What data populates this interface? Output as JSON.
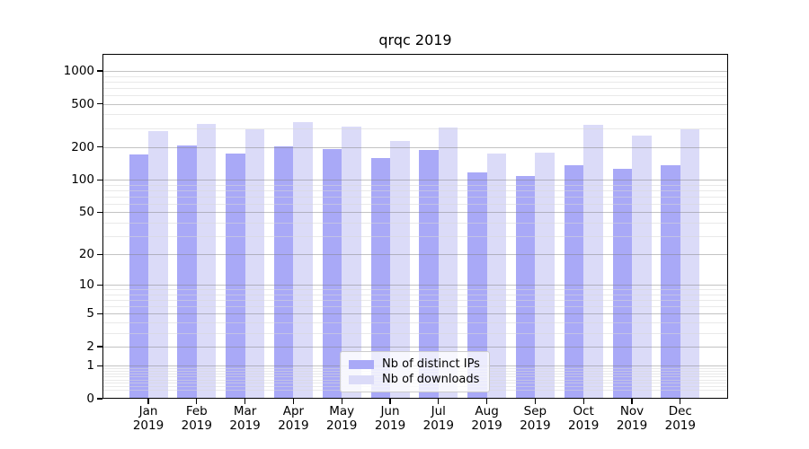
{
  "chart_data": {
    "type": "bar",
    "title": "qrqc 2019",
    "categories": [
      "Jan 2019",
      "Feb 2019",
      "Mar 2019",
      "Apr 2019",
      "May 2019",
      "Jun 2019",
      "Jul 2019",
      "Aug 2019",
      "Sep 2019",
      "Oct 2019",
      "Nov 2019",
      "Dec 2019"
    ],
    "series": [
      {
        "name": "Nb of distinct IPs",
        "color": "#a9a9f7",
        "values": [
          172,
          209,
          175,
          202,
          192,
          159,
          189,
          118,
          109,
          135,
          127,
          135
        ]
      },
      {
        "name": "Nb of downloads",
        "color": "#dbdbf8",
        "values": [
          282,
          329,
          293,
          338,
          311,
          228,
          303,
          175,
          177,
          321,
          257,
          293
        ]
      }
    ],
    "yscale": "log1p",
    "yticks": [
      0,
      1,
      2,
      5,
      10,
      20,
      50,
      100,
      200,
      500,
      1000
    ],
    "minor_gridlines": [
      0.2,
      0.3,
      0.4,
      0.5,
      0.6,
      0.7,
      0.8,
      0.9,
      3,
      4,
      6,
      7,
      8,
      9,
      30,
      40,
      60,
      70,
      80,
      90,
      300,
      400,
      600,
      700,
      800,
      900
    ],
    "ylim": [
      0,
      1434
    ],
    "grid": "horizontal, drawn above bars",
    "legend_position": "lower center",
    "xlabel": "",
    "ylabel": ""
  }
}
